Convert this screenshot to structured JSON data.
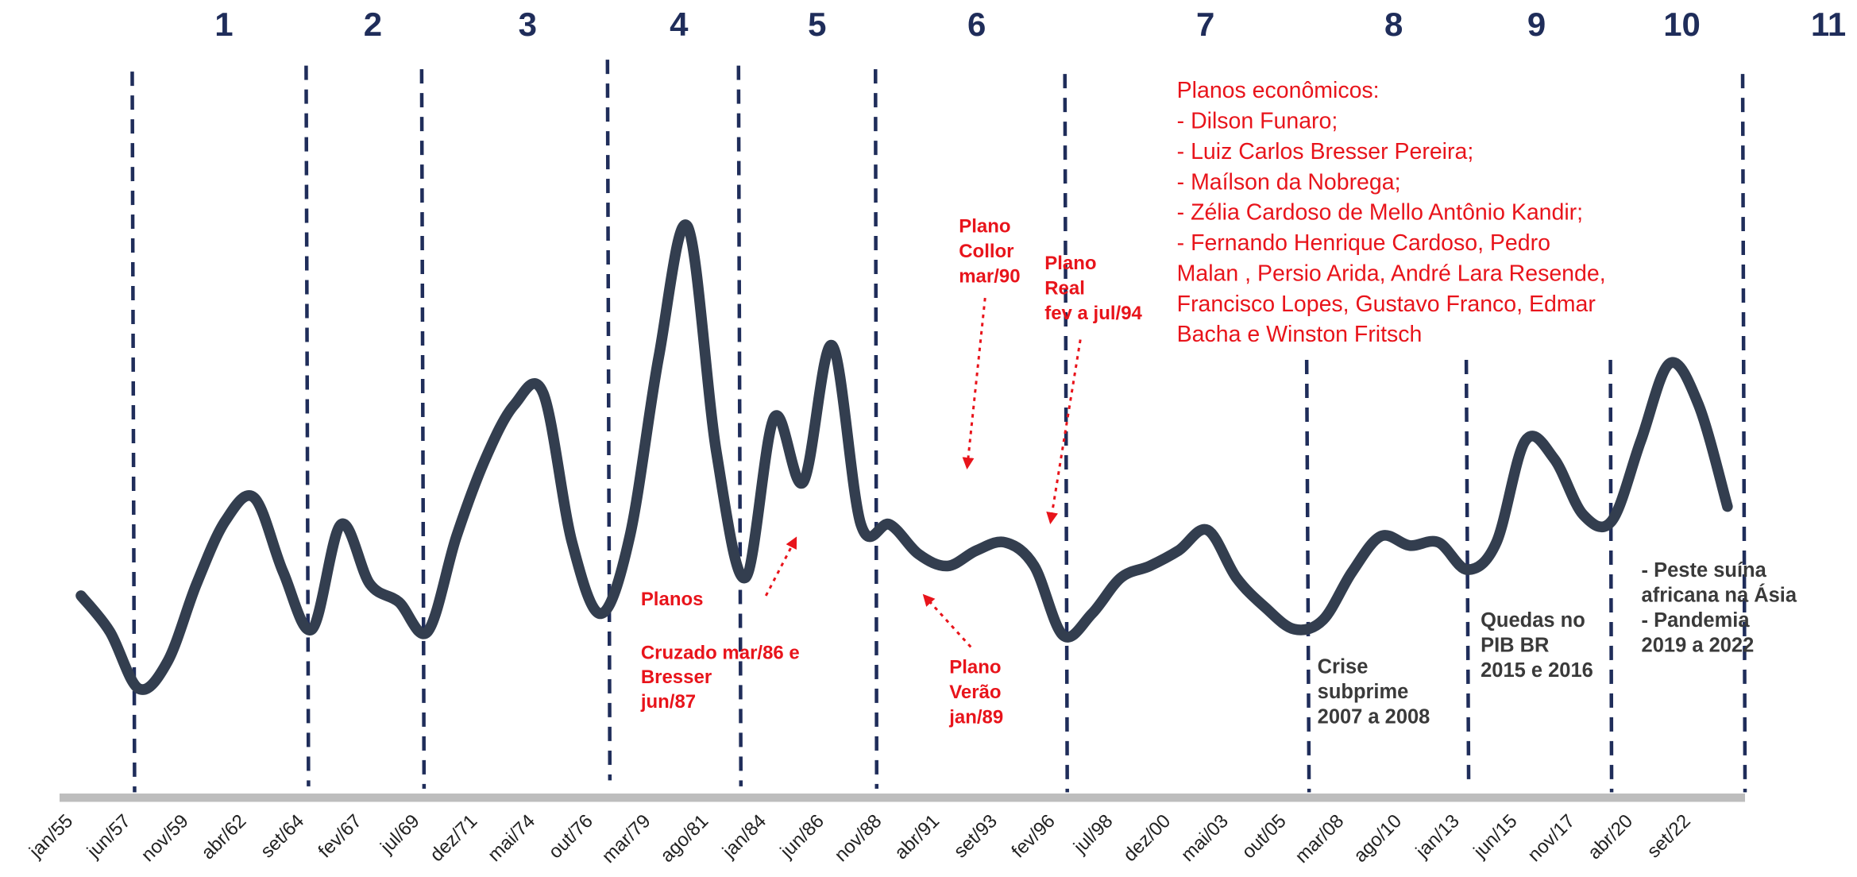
{
  "chart_data": {
    "type": "line",
    "periods": [
      "1",
      "2",
      "3",
      "4",
      "5",
      "6",
      "7",
      "8",
      "9",
      "10",
      "11"
    ],
    "categories": [
      "jan/55",
      null,
      "jun/57",
      null,
      "nov/59",
      null,
      "abr/62",
      null,
      "set/64",
      null,
      "fev/67",
      null,
      "jul/69",
      null,
      "dez/71",
      null,
      "mai/74",
      null,
      "out/76",
      null,
      "mar/79",
      null,
      "ago/81",
      null,
      "jan/84",
      null,
      "jun/86",
      null,
      "nov/88",
      null,
      "abr/91",
      null,
      "set/93",
      null,
      "fev/96",
      null,
      "jul/98",
      null,
      "dez/00",
      null,
      "mai/03",
      null,
      "out/05",
      null,
      "mar/08",
      null,
      "ago/10",
      null,
      "jan/13",
      null,
      "jun/15",
      null,
      "nov/17",
      null,
      "abr/20",
      null,
      "set/22",
      null
    ],
    "series": [
      {
        "color": "#333e4f",
        "values": [
          32.7,
          26.9,
          17.7,
          22.1,
          34.6,
          44.8,
          48.5,
          36.5,
          27.3,
          44.2,
          34.6,
          31.7,
          26.9,
          42.3,
          54.8,
          63.5,
          65.4,
          41.3,
          29.8,
          42.3,
          71.2,
          92.3,
          55.8,
          35.6,
          61.5,
          51.0,
          73.1,
          44.2,
          44.2,
          39.4,
          37.5,
          40.0,
          41.3,
          37.5,
          26.3,
          29.8,
          35.6,
          37.5,
          40.0,
          43.3,
          35.6,
          30.8,
          27.3,
          28.8,
          36.5,
          42.3,
          40.8,
          41.3,
          36.9,
          41.3,
          57.7,
          54.8,
          45.8,
          44.8,
          57.7,
          70.2,
          63.5,
          47.1
        ]
      }
    ],
    "ylim": [
      0,
      100
    ],
    "annotations": [
      {
        "lines": [
          "Planos"
        ]
      },
      {
        "lines": [
          "Cruzado mar/86 e",
          "Bresser",
          "jun/87"
        ]
      },
      {
        "lines": [
          "Plano",
          "Collor",
          "mar/90"
        ]
      },
      {
        "lines": [
          "Plano",
          "Real",
          "fev a jul/94"
        ]
      },
      {
        "lines": [
          "Plano",
          "Verão",
          "jan/89"
        ]
      },
      {
        "lines": [
          "Planos econômicos:",
          "- Dilson Funaro;",
          "- Luiz Carlos Bresser Pereira;",
          "- Maílson da Nobrega;",
          "- Zélia Cardoso de Mello Antônio Kandir;",
          "- Fernando Henrique Cardoso, Pedro",
          "Malan , Persio Arida, André Lara Resende,",
          "Francisco Lopes, Gustavo Franco, Edmar",
          "Bacha e Winston Fritsch"
        ]
      },
      {
        "lines": [
          "Crise",
          "subprime",
          "2007 a 2008"
        ]
      },
      {
        "lines": [
          "Quedas no",
          "PIB BR",
          "2015 e 2016"
        ]
      },
      {
        "lines": [
          "- Peste suína",
          "africana na Ásia",
          " - Pandemia",
          "2019 a 2022"
        ]
      }
    ]
  }
}
